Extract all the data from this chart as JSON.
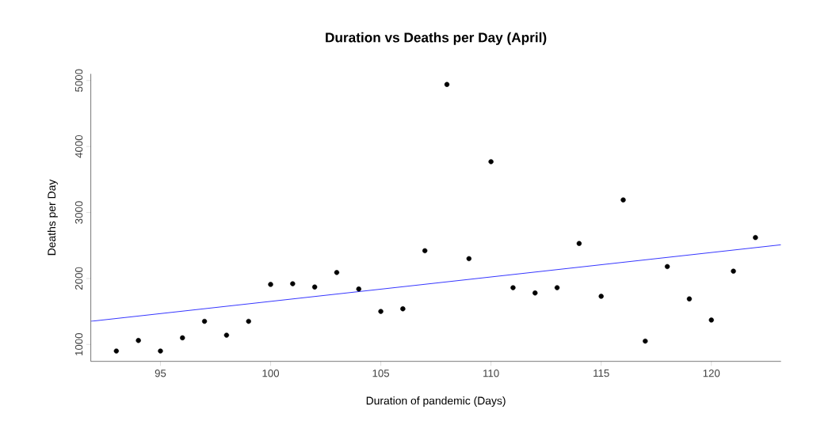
{
  "chart_data": {
    "type": "scatter",
    "title": "Duration vs Deaths per Day (April)",
    "xlabel": "Duration of pandemic (Days)",
    "ylabel": "Deaths per Day",
    "x": [
      93,
      94,
      95,
      96,
      97,
      98,
      99,
      100,
      101,
      102,
      103,
      104,
      105,
      106,
      107,
      108,
      109,
      110,
      111,
      112,
      113,
      114,
      115,
      116,
      117,
      118,
      119,
      120,
      121,
      122
    ],
    "series": [
      {
        "color": "#000000",
        "marker": "circle",
        "values": [
          900,
          1060,
          900,
          1100,
          1350,
          1140,
          1350,
          1910,
          1920,
          1870,
          2090,
          1840,
          1500,
          1540,
          2420,
          4940,
          2300,
          3770,
          1860,
          1780,
          1860,
          2530,
          1730,
          3190,
          1050,
          2180,
          1690,
          1370,
          2110,
          2620
        ]
      },
      {
        "type": "line",
        "color": "#0000ff",
        "x": [
          91.84,
          123.16
        ],
        "values": [
          1350,
          2510
        ]
      }
    ],
    "xlim": [
      91.84,
      123.16
    ],
    "ylim": [
      743,
      5101
    ],
    "xticks": [
      95,
      100,
      105,
      110,
      115,
      120
    ],
    "yticks": [
      1000,
      2000,
      3000,
      4000,
      5000
    ],
    "grid": false
  }
}
